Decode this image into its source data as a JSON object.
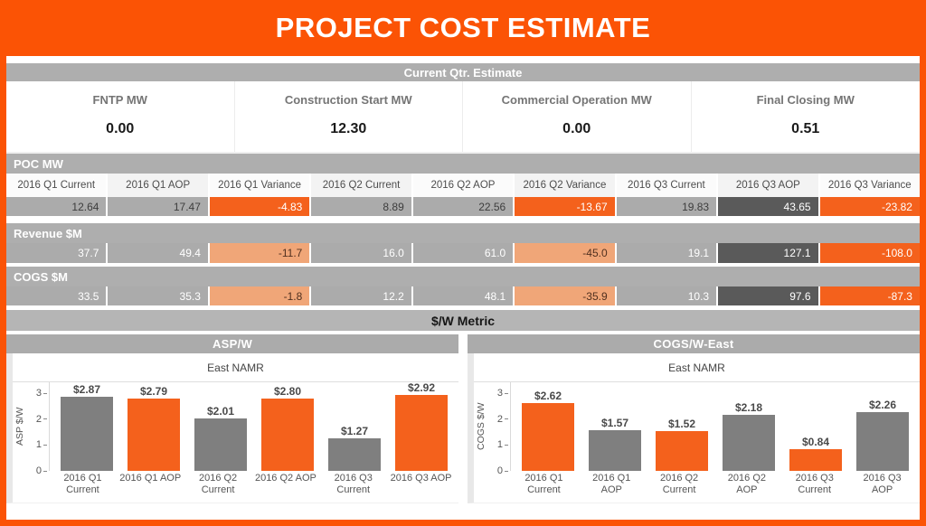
{
  "page": {
    "title": "PROJECT COST ESTIMATE"
  },
  "colors": {
    "frame_orange": "#FB5305",
    "bar_orange": "#F4611C",
    "cell_gray": "#ABABAB",
    "cell_dark_gray": "#5A5A5A",
    "cell_salmon": "#F0A678",
    "section_bar_gray": "#AEAEAE",
    "bar_chart_gray": "#7F7F7F"
  },
  "current_qtr": {
    "title": "Current Qtr. Estimate",
    "metrics": [
      {
        "label": "FNTP MW",
        "value": "0.00"
      },
      {
        "label": "Construction Start MW",
        "value": "12.30"
      },
      {
        "label": "Commercial Operation MW",
        "value": "0.00"
      },
      {
        "label": "Final Closing MW",
        "value": "0.51"
      }
    ]
  },
  "quarter_columns": [
    "2016 Q1 Current",
    "2016 Q1 AOP",
    "2016 Q1 Variance",
    "2016 Q2 Current",
    "2016 Q2 AOP",
    "2016 Q2 Variance",
    "2016 Q3 Current",
    "2016 Q3 AOP",
    "2016 Q3 Variance"
  ],
  "sections": [
    {
      "title": "POC MW",
      "cells": [
        {
          "v": "12.64",
          "s": "gray"
        },
        {
          "v": "17.47",
          "s": "gray"
        },
        {
          "v": "-4.83",
          "s": "orange"
        },
        {
          "v": "8.89",
          "s": "gray"
        },
        {
          "v": "22.56",
          "s": "gray"
        },
        {
          "v": "-13.67",
          "s": "orange"
        },
        {
          "v": "19.83",
          "s": "gray"
        },
        {
          "v": "43.65",
          "s": "dark"
        },
        {
          "v": "-23.82",
          "s": "orange"
        }
      ]
    },
    {
      "title": "Revenue $M",
      "cells": [
        {
          "v": "37.7",
          "s": "grayw"
        },
        {
          "v": "49.4",
          "s": "grayw"
        },
        {
          "v": "-11.7",
          "s": "salmon"
        },
        {
          "v": "16.0",
          "s": "grayw"
        },
        {
          "v": "61.0",
          "s": "grayw"
        },
        {
          "v": "-45.0",
          "s": "salmon"
        },
        {
          "v": "19.1",
          "s": "grayw"
        },
        {
          "v": "127.1",
          "s": "dark"
        },
        {
          "v": "-108.0",
          "s": "orange"
        }
      ]
    },
    {
      "title": "COGS $M",
      "cells": [
        {
          "v": "33.5",
          "s": "grayw"
        },
        {
          "v": "35.3",
          "s": "grayw"
        },
        {
          "v": "-1.8",
          "s": "salmon"
        },
        {
          "v": "12.2",
          "s": "grayw"
        },
        {
          "v": "48.1",
          "s": "grayw"
        },
        {
          "v": "-35.9",
          "s": "salmon"
        },
        {
          "v": "10.3",
          "s": "grayw"
        },
        {
          "v": "97.6",
          "s": "dark"
        },
        {
          "v": "-87.3",
          "s": "orange"
        }
      ]
    }
  ],
  "metric_band": {
    "title": "$/W Metric"
  },
  "chart_data": [
    {
      "type": "bar",
      "title": "ASP/W",
      "subtitle": "East NAMR",
      "ylabel": "ASP $/W",
      "ylim": [
        0,
        3
      ],
      "yticks": [
        3,
        2,
        1,
        0
      ],
      "categories": [
        [
          "2016 Q1",
          "Current"
        ],
        [
          "2016 Q1 AOP"
        ],
        [
          "2016 Q2",
          "Current"
        ],
        [
          "2016 Q2 AOP"
        ],
        [
          "2016 Q3",
          "Current"
        ],
        [
          "2016 Q3 AOP"
        ]
      ],
      "values": [
        2.87,
        2.79,
        2.01,
        2.8,
        1.27,
        2.92
      ],
      "labels": [
        "$2.87",
        "$2.79",
        "$2.01",
        "$2.80",
        "$1.27",
        "$2.92"
      ],
      "bar_colors": [
        "gray",
        "orange",
        "gray",
        "orange",
        "gray",
        "orange"
      ],
      "legend": "none",
      "grid": "off"
    },
    {
      "type": "bar",
      "title": "COGS/W-East",
      "subtitle": "East NAMR",
      "ylabel": "COGS $/W",
      "ylim": [
        0,
        3
      ],
      "yticks": [
        3,
        2,
        1,
        0
      ],
      "categories": [
        [
          "2016 Q1",
          "Current"
        ],
        [
          "2016 Q1",
          "AOP"
        ],
        [
          "2016 Q2",
          "Current"
        ],
        [
          "2016 Q2",
          "AOP"
        ],
        [
          "2016 Q3",
          "Current"
        ],
        [
          "2016 Q3",
          "AOP"
        ]
      ],
      "values": [
        2.62,
        1.57,
        1.52,
        2.18,
        0.84,
        2.26
      ],
      "labels": [
        "$2.62",
        "$1.57",
        "$1.52",
        "$2.18",
        "$0.84",
        "$2.26"
      ],
      "bar_colors": [
        "orange",
        "gray",
        "orange",
        "gray",
        "orange",
        "gray"
      ],
      "legend": "none",
      "grid": "off"
    }
  ]
}
